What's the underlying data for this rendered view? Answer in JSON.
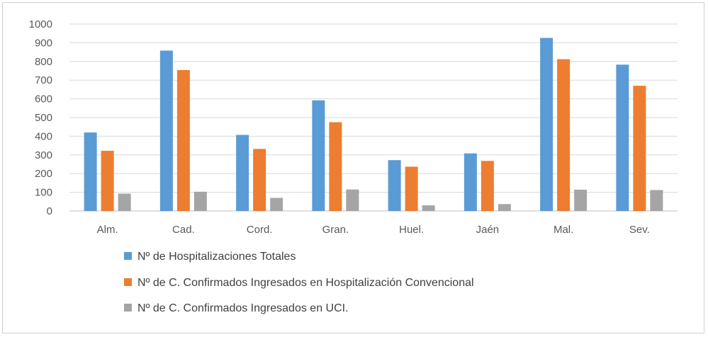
{
  "chart_data": {
    "type": "bar",
    "title": "",
    "xlabel": "",
    "ylabel": "",
    "ylim": [
      0,
      1000
    ],
    "yticks": [
      "0",
      "100",
      "200",
      "300",
      "400",
      "500",
      "600",
      "700",
      "800",
      "900",
      "1000"
    ],
    "categories": [
      "Alm.",
      "Cad.",
      "Cord.",
      "Gran.",
      "Huel.",
      "Jaén",
      "Mal.",
      "Sev."
    ],
    "grid": true,
    "legend_position": "bottom",
    "series": [
      {
        "name": "Nº de Hospitalizaciones Totales",
        "color": "#5b9bd5",
        "values": [
          420,
          858,
          407,
          592,
          272,
          308,
          926,
          783
        ]
      },
      {
        "name": "Nº de C. Confirmados Ingresados en Hospitalización Convencional",
        "color": "#ed7d31",
        "values": [
          322,
          754,
          332,
          475,
          237,
          268,
          812,
          670
        ]
      },
      {
        "name": "Nº de C. Confirmados Ingresados en UCI.",
        "color": "#a5a5a5",
        "values": [
          93,
          103,
          70,
          115,
          30,
          37,
          114,
          112
        ]
      }
    ]
  }
}
